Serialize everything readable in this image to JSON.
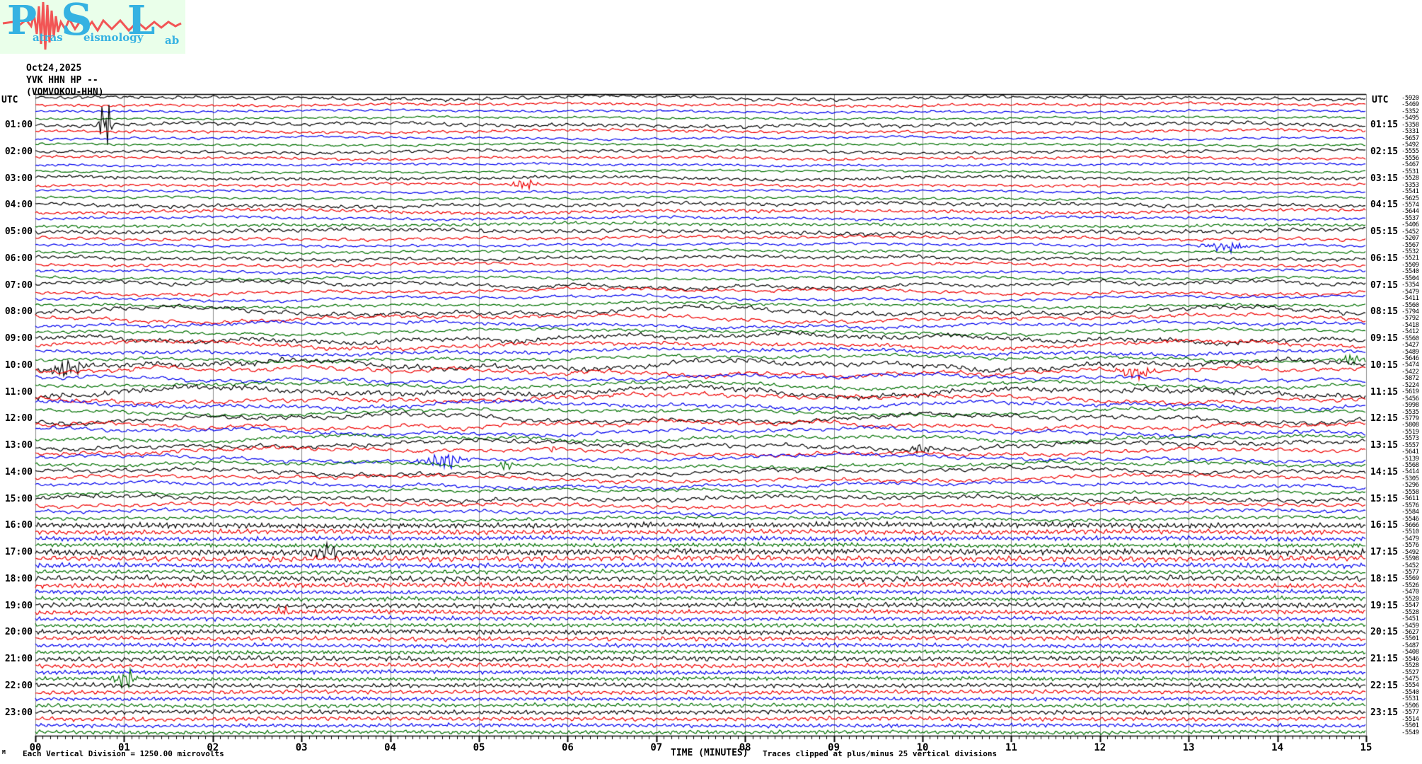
{
  "logo": {
    "letter_p": "P",
    "word_atras": "atras",
    "letter_s": "S",
    "word_eismology": "eismology",
    "letter_l": "L",
    "word_ab": "ab"
  },
  "header": {
    "date": "Oct24,2025",
    "station_line": "YVK HHN HP --",
    "station_long": "(VOMVOKOU-HHN)"
  },
  "axis": {
    "utc_left": "UTC",
    "utc_right": "UTC",
    "xlabel": "TIME (MINUTES)",
    "left_times": [
      "01:00",
      "02:00",
      "03:00",
      "04:00",
      "05:00",
      "06:00",
      "07:00",
      "08:00",
      "09:00",
      "10:00",
      "11:00",
      "12:00",
      "13:00",
      "14:00",
      "15:00",
      "16:00",
      "17:00",
      "18:00",
      "19:00",
      "20:00",
      "21:00",
      "22:00",
      "23:00"
    ],
    "right_times": [
      "01:15",
      "02:15",
      "03:15",
      "04:15",
      "05:15",
      "06:15",
      "07:15",
      "08:15",
      "09:15",
      "10:15",
      "11:15",
      "12:15",
      "13:15",
      "14:15",
      "15:15",
      "16:15",
      "17:15",
      "18:15",
      "19:15",
      "20:15",
      "21:15",
      "22:15",
      "23:15"
    ],
    "minute_labels": [
      "00",
      "01",
      "02",
      "03",
      "04",
      "05",
      "06",
      "07",
      "08",
      "09",
      "10",
      "11",
      "12",
      "13",
      "14",
      "15"
    ]
  },
  "footer": {
    "corner_glyph": "M",
    "scale_note": "Each Vertical Division = 1250.00 microvolts",
    "clip_note": "Traces clipped at plus/minus 25 vertical divisions"
  },
  "chart_data": {
    "type": "line",
    "title": "YVK HHN HP -- (VOMVOKOU-HHN) helicorder, Oct24,2025",
    "xlabel": "TIME (MINUTES)",
    "x_range_minutes": [
      0,
      15
    ],
    "rows": 96,
    "minutes_per_row": 15,
    "first_row_start": "00:00",
    "vertical_division": "1250.00 microvolts",
    "clip": "plus/minus 25 vertical divisions",
    "colors_cycle": [
      "#000000",
      "#ee0000",
      "#0000ee",
      "#007000"
    ],
    "grid_color": "#8c8c8c",
    "row_offsets": [
      -5920,
      -5469,
      -5352,
      -5495,
      -5358,
      -5331,
      -5657,
      -5492,
      -5555,
      -5556,
      -5467,
      -5531,
      -5528,
      -5353,
      -5541,
      -5625,
      -5574,
      -5644,
      -5537,
      -5406,
      -5452,
      -5207,
      -5567,
      -5532,
      -5521,
      -5509,
      -5540,
      -5504,
      -5354,
      -5479,
      -5411,
      -5560,
      -5794,
      -5792,
      -5418,
      -5412,
      -5560,
      -5427,
      -5489,
      -5646,
      -5474,
      -5422,
      -5872,
      -5224,
      -5619,
      -5456,
      -5998,
      -5535,
      -5779,
      -5808,
      -5519,
      -5573,
      -5557,
      -5641,
      -5139,
      -5568,
      -5414,
      -5305,
      -5296,
      -5558,
      -5611,
      -5576,
      -5584,
      -5546,
      -5666,
      -5510,
      -5479,
      -5576,
      -5492,
      -5598,
      -5452,
      -5577,
      -5569,
      -5526,
      -5470,
      -5520,
      -5547,
      -5528,
      -5451,
      -5459,
      -5627,
      -5501,
      -5487,
      -5408,
      -5546,
      -5528,
      -5527,
      -5475,
      -5554,
      -5540,
      -5531,
      -5506,
      -5577,
      -5514,
      -5501,
      -5549
    ],
    "row_amplitude": [
      4.0,
      3.0,
      2.6,
      2.4,
      4.2,
      3.2,
      2.8,
      2.6,
      3.6,
      3.0,
      2.6,
      2.4,
      3.6,
      3.0,
      2.6,
      2.8,
      4.2,
      3.6,
      3.0,
      3.4,
      4.6,
      3.6,
      3.0,
      3.0,
      4.0,
      3.4,
      3.0,
      3.0,
      6.0,
      5.0,
      4.4,
      4.0,
      7.0,
      6.0,
      5.0,
      4.8,
      7.0,
      6.0,
      5.4,
      5.0,
      8.0,
      7.0,
      6.0,
      5.4,
      8.0,
      7.0,
      6.0,
      5.4,
      7.4,
      6.6,
      6.0,
      5.4,
      7.0,
      6.4,
      5.8,
      5.0,
      6.4,
      5.6,
      5.0,
      4.4,
      5.0,
      4.4,
      4.0,
      3.6,
      4.0,
      3.6,
      3.4,
      3.0,
      4.6,
      4.0,
      3.6,
      3.0,
      4.0,
      3.6,
      3.0,
      3.0,
      3.6,
      3.2,
      3.0,
      2.8,
      3.6,
      3.2,
      3.0,
      2.8,
      3.6,
      3.2,
      3.0,
      2.8,
      3.2,
      3.0,
      2.8,
      2.8,
      3.2,
      3.0,
      2.8,
      2.8
    ],
    "row_roughness": [
      0.5,
      0.5,
      0.5,
      0.5,
      0.5,
      0.5,
      0.5,
      0.5,
      0.5,
      0.5,
      0.5,
      0.5,
      0.5,
      0.5,
      0.5,
      0.5,
      0.5,
      0.5,
      0.5,
      0.5,
      0.5,
      0.5,
      0.5,
      0.5,
      0.5,
      0.5,
      0.5,
      0.5,
      0.35,
      0.35,
      0.35,
      0.35,
      0.35,
      0.35,
      0.35,
      0.35,
      0.35,
      0.35,
      0.35,
      0.35,
      0.35,
      0.35,
      0.35,
      0.35,
      0.35,
      0.35,
      0.35,
      0.35,
      0.35,
      0.35,
      0.35,
      0.35,
      0.35,
      0.35,
      0.35,
      0.35,
      0.35,
      0.35,
      0.35,
      0.35,
      0.5,
      0.5,
      0.5,
      0.5,
      0.8,
      0.8,
      0.8,
      0.8,
      0.8,
      0.8,
      0.8,
      0.8,
      0.8,
      0.8,
      0.8,
      0.8,
      0.8,
      0.8,
      0.8,
      0.8,
      0.8,
      0.8,
      0.8,
      0.8,
      0.8,
      0.8,
      0.8,
      0.8,
      0.8,
      0.8,
      0.8,
      0.8,
      0.8,
      0.8,
      0.8,
      0.8
    ],
    "events": [
      {
        "row": 4,
        "minute": 0.79,
        "amp": 40,
        "width": 0.06
      },
      {
        "row": 13,
        "minute": 5.5,
        "amp": 8,
        "width": 0.12
      },
      {
        "row": 22,
        "minute": 13.4,
        "amp": 8,
        "width": 0.2
      },
      {
        "row": 39,
        "minute": 14.85,
        "amp": 8,
        "width": 0.12
      },
      {
        "row": 40,
        "minute": 0.35,
        "amp": 11,
        "width": 0.18
      },
      {
        "row": 41,
        "minute": 12.4,
        "amp": 9,
        "width": 0.18
      },
      {
        "row": 52,
        "minute": 10.0,
        "amp": 7,
        "width": 0.1
      },
      {
        "row": 53,
        "minute": 5.82,
        "amp": 6,
        "width": 0.05
      },
      {
        "row": 54,
        "minute": 4.6,
        "amp": 13,
        "width": 0.22
      },
      {
        "row": 55,
        "minute": 5.3,
        "amp": 8,
        "width": 0.06
      },
      {
        "row": 68,
        "minute": 3.3,
        "amp": 9,
        "width": 0.25
      },
      {
        "row": 77,
        "minute": 2.8,
        "amp": 6,
        "width": 0.08
      },
      {
        "row": 87,
        "minute": 1.0,
        "amp": 15,
        "width": 0.1
      }
    ]
  }
}
